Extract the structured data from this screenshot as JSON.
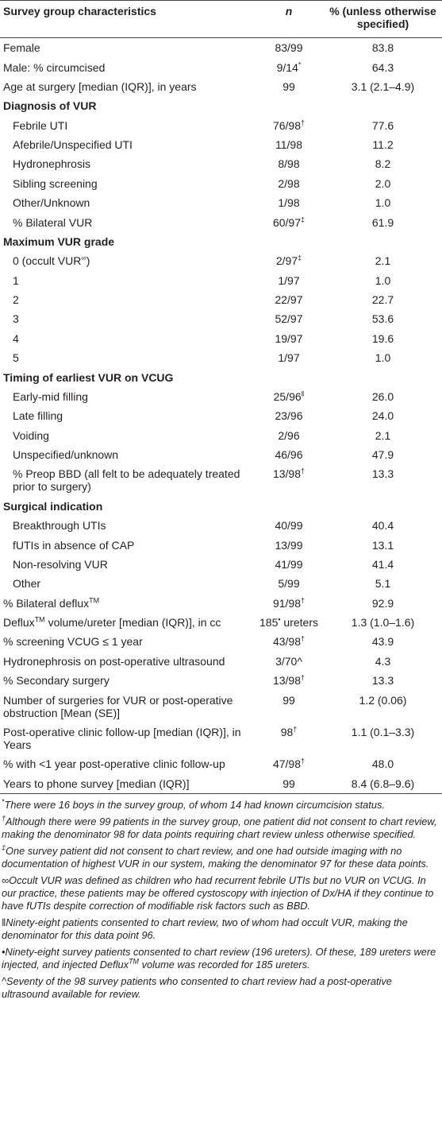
{
  "table": {
    "header": [
      "Survey group characteristics",
      "n",
      "% (unless otherwise specified)"
    ],
    "rows": [
      {
        "label": "Female",
        "n": "83/99",
        "pct": "83.8"
      },
      {
        "label": "Male: % circumcised",
        "n": [
          "9/14",
          {
            "sup": "*"
          }
        ],
        "pct": "64.3"
      },
      {
        "label": "Age at surgery [median (IQR)], in years",
        "n": "99",
        "pct": "3.1 (2.1–4.9)"
      },
      {
        "label": "Diagnosis of VUR",
        "bold": true
      },
      {
        "label": "Febrile UTI",
        "n": [
          "76/98",
          {
            "sup": "†"
          }
        ],
        "pct": "77.6",
        "indent": true
      },
      {
        "label": "Afebrile/Unspecified UTI",
        "n": "11/98",
        "pct": "11.2",
        "indent": true
      },
      {
        "label": "Hydronephrosis",
        "n": "8/98",
        "pct": "8.2",
        "indent": true
      },
      {
        "label": "Sibling screening",
        "n": "2/98",
        "pct": "2.0",
        "indent": true
      },
      {
        "label": "Other/Unknown",
        "n": "1/98",
        "pct": "1.0",
        "indent": true
      },
      {
        "label": "% Bilateral VUR",
        "n": [
          "60/97",
          {
            "sup": "‡"
          }
        ],
        "pct": "61.9",
        "indent": true
      },
      {
        "label": "Maximum VUR grade",
        "bold": true
      },
      {
        "label": [
          "0 (occult VUR",
          {
            "sup": "∞"
          },
          ")"
        ],
        "n": [
          "2/97",
          {
            "sup": "‡"
          }
        ],
        "pct": "2.1",
        "indent": true
      },
      {
        "label": "1",
        "n": "1/97",
        "pct": "1.0",
        "indent": true
      },
      {
        "label": "2",
        "n": "22/97",
        "pct": "22.7",
        "indent": true
      },
      {
        "label": "3",
        "n": "52/97",
        "pct": "53.6",
        "indent": true
      },
      {
        "label": "4",
        "n": "19/97",
        "pct": "19.6",
        "indent": true
      },
      {
        "label": "5",
        "n": "1/97",
        "pct": "1.0",
        "indent": true
      },
      {
        "label": "Timing of earliest VUR on VCUG",
        "bold": true
      },
      {
        "label": "Early-mid filling",
        "n": [
          "25/96",
          {
            "sup": "‖"
          }
        ],
        "pct": "26.0",
        "indent": true
      },
      {
        "label": "Late filling",
        "n": "23/96",
        "pct": "24.0",
        "indent": true
      },
      {
        "label": "Voiding",
        "n": "2/96",
        "pct": "2.1",
        "indent": true
      },
      {
        "label": "Unspecified/unknown",
        "n": "46/96",
        "pct": "47.9",
        "indent": true
      },
      {
        "label": "% Preop BBD (all felt to be adequately treated prior to surgery)",
        "n": [
          "13/98",
          {
            "sup": "†"
          }
        ],
        "pct": "13.3",
        "indent": true
      },
      {
        "label": "Surgical indication",
        "bold": true
      },
      {
        "label": "Breakthrough UTIs",
        "n": "40/99",
        "pct": "40.4",
        "indent": true
      },
      {
        "label": "fUTIs in absence of CAP",
        "n": "13/99",
        "pct": "13.1",
        "indent": true
      },
      {
        "label": "Non-resolving VUR",
        "n": "41/99",
        "pct": "41.4",
        "indent": true
      },
      {
        "label": "Other",
        "n": "5/99",
        "pct": "5.1",
        "indent": true
      },
      {
        "label": [
          "% Bilateral deflux",
          {
            "sup": "TM"
          }
        ],
        "n": [
          "91/98",
          {
            "sup": "†"
          }
        ],
        "pct": "92.9"
      },
      {
        "label": [
          "Deflux",
          {
            "sup": "TM"
          },
          " volume/ureter [median (IQR)], in cc"
        ],
        "n": [
          "185",
          {
            "sup": "•"
          },
          " ureters"
        ],
        "pct": "1.3 (1.0–1.6)"
      },
      {
        "label": "% screening VCUG ≤ 1 year",
        "n": [
          "43/98",
          {
            "sup": "†"
          }
        ],
        "pct": "43.9"
      },
      {
        "label": "Hydronephrosis on post-operative ultrasound",
        "n": "3/70^",
        "pct": "4.3"
      },
      {
        "label": "% Secondary surgery",
        "n": [
          "13/98",
          {
            "sup": "†"
          }
        ],
        "pct": "13.3"
      },
      {
        "label": "Number of surgeries for VUR or post-operative obstruction [Mean (SE)]",
        "n": "99",
        "pct": "1.2 (0.06)"
      },
      {
        "label": "Post-operative clinic follow-up [median (IQR)], in Years",
        "n": [
          "98",
          {
            "sup": "†"
          }
        ],
        "pct": "1.1 (0.1–3.3)"
      },
      {
        "label": "% with <1 year post-operative clinic follow-up",
        "n": [
          "47/98",
          {
            "sup": "†"
          }
        ],
        "pct": "48.0"
      },
      {
        "label": "Years to phone survey [median (IQR)]",
        "n": "99",
        "pct": "8.4 (6.8–9.6)"
      }
    ]
  },
  "footnotes": [
    [
      {
        "sup": "*"
      },
      "There were 16 boys in the survey group, of whom 14 had known circumcision status."
    ],
    [
      {
        "sup": "†"
      },
      "Although there were 99 patients in the survey group, one patient did not consent to chart review, making the denominator 98 for data points requiring chart review unless otherwise specified."
    ],
    [
      {
        "sup": "‡"
      },
      "One survey patient did not consent to chart review, and one had outside imaging with no documentation of highest VUR in our system, making the denominator 97 for these data points."
    ],
    [
      "∞Occult VUR was defined as children who had recurrent febrile UTIs but no VUR on VCUG. In our practice, these patients may be offered cystoscopy with injection of Dx/HA if they continue to have fUTIs despite correction of modifiable risk factors such as BBD."
    ],
    [
      "‖Ninety-eight patients consented to chart review, two of whom had occult VUR, making the denominator for this data point 96."
    ],
    [
      "•Ninety-eight survey patients consented to chart review (196 ureters). Of these, 189 ureters were injected, and injected Deflux",
      {
        "sup": "TM"
      },
      " volume was recorded for 185 ureters."
    ],
    [
      "^Seventy of the 98 survey patients who consented to chart review had a post-operative ultrasound available for review."
    ]
  ]
}
